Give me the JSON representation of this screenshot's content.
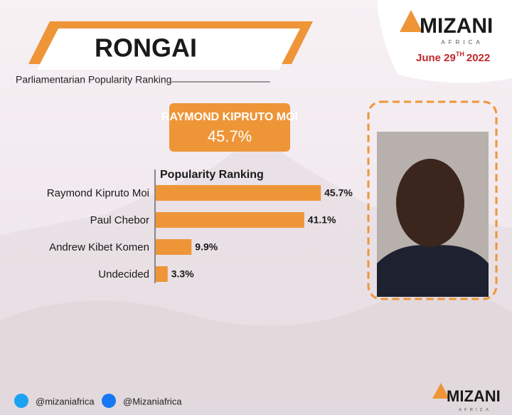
{
  "header": {
    "title": "RONGAI",
    "subtitle": "Parliamentarian Popularity Ranking"
  },
  "brand": {
    "name": "MIZANI",
    "tagline": "AFRICA",
    "date": "June 29",
    "date_sup": "TH",
    "year": "2022"
  },
  "highlight": {
    "name": "RAYMOND KIPRUTO MOI",
    "value": "45.7%"
  },
  "chart_data": {
    "type": "bar",
    "orientation": "horizontal",
    "title": "Popularity Ranking",
    "categories": [
      "Raymond Kipruto Moi",
      "Paul Chebor",
      "Andrew Kibet Komen",
      "Undecided"
    ],
    "values": [
      45.7,
      41.1,
      9.9,
      3.3
    ],
    "value_labels": [
      "45.7%",
      "41.1%",
      "9.9%",
      "3.3%"
    ],
    "color": "#ee9538"
  },
  "footer": {
    "twitter": "@mizaniafrica",
    "facebook": "@Mizaniafrica",
    "brand": "MIZANI",
    "tagline": "AFRICA"
  }
}
